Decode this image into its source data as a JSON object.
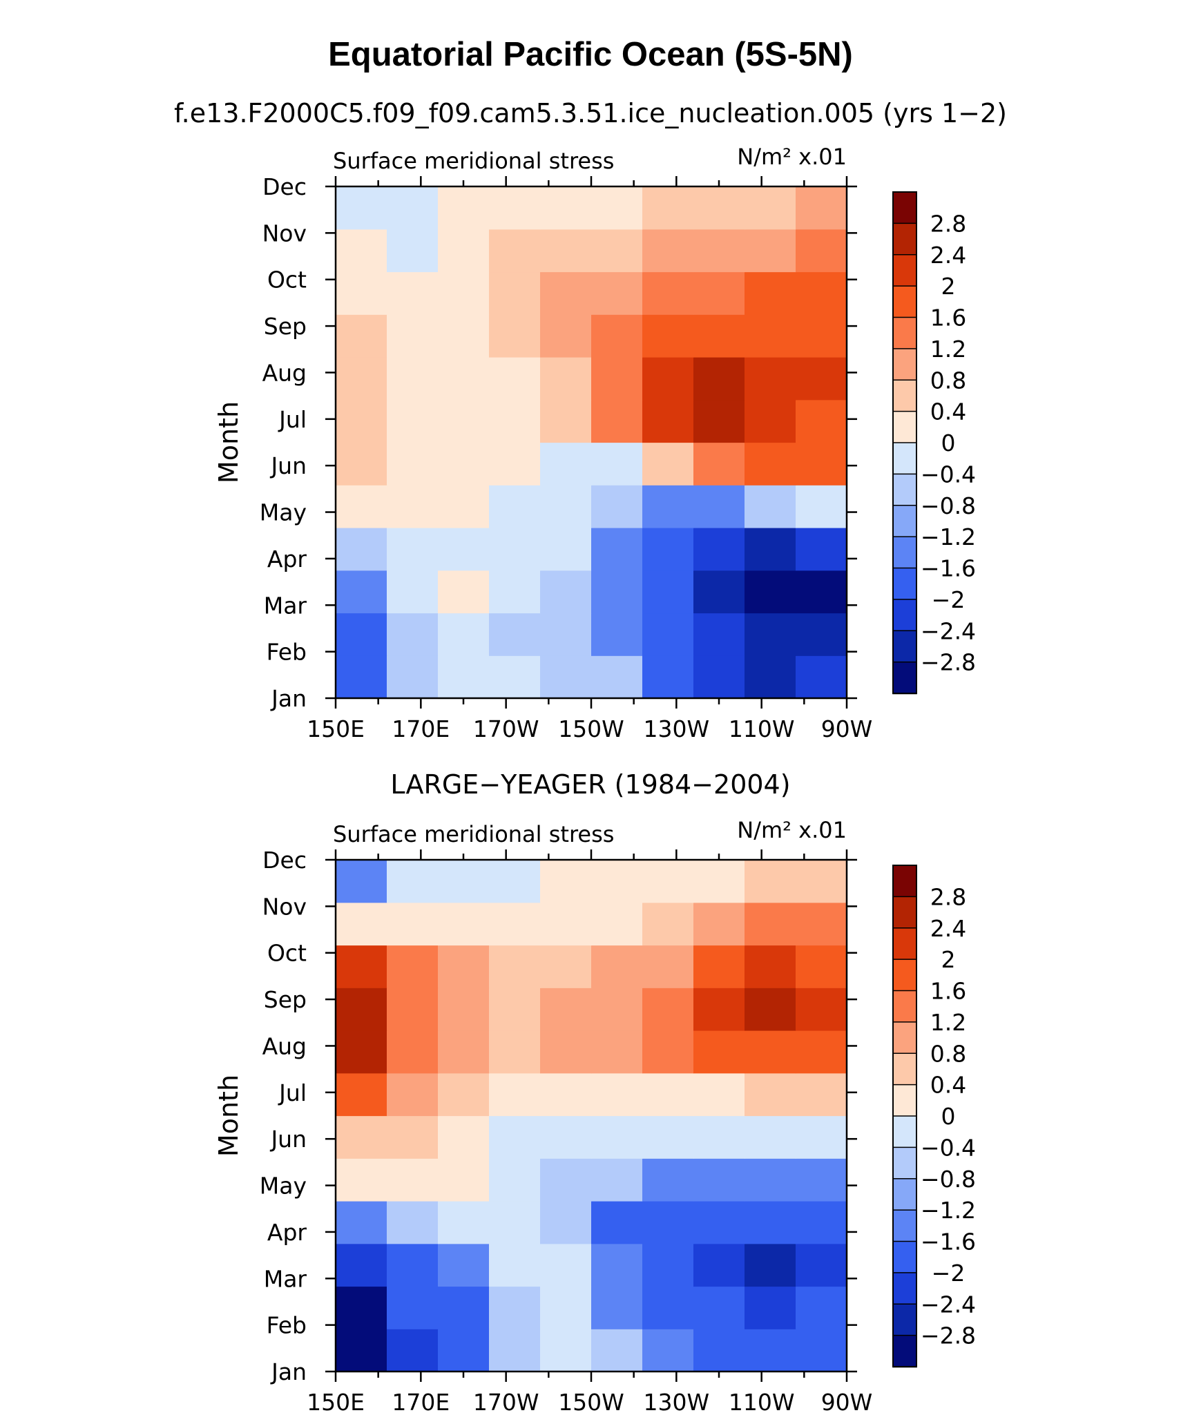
{
  "figure": {
    "title": "Equatorial Pacific Ocean (5S-5N)"
  },
  "chart_data": [
    {
      "type": "heatmap",
      "subtitle": "f.e13.F2000C5.f09_f09.cam5.3.51.ice_nucleation.005 (yrs 1−2)",
      "variable": "Surface meridional stress",
      "units": "N/m² x.01",
      "xlabel": "",
      "ylabel": "Month",
      "x_ticks": [
        "150E",
        "170E",
        "170W",
        "150W",
        "130W",
        "110W",
        "90W"
      ],
      "x_lon": [
        150,
        170,
        190,
        210,
        230,
        250,
        270
      ],
      "y_ticks": [
        "Jan",
        "Feb",
        "Mar",
        "Apr",
        "May",
        "Jun",
        "Jul",
        "Aug",
        "Sep",
        "Oct",
        "Nov",
        "Dec"
      ],
      "values": [
        [
          -2.0,
          -0.8,
          -0.4,
          -0.4,
          -0.8,
          -0.8,
          -1.6,
          -2.4,
          -2.8,
          -2.4
        ],
        [
          -1.6,
          -0.8,
          -0.4,
          -0.8,
          -0.8,
          -1.2,
          -1.6,
          -2.4,
          -2.8,
          -2.8
        ],
        [
          -1.2,
          -0.4,
          0.2,
          -0.4,
          -0.8,
          -1.2,
          -2.0,
          -2.8,
          -3.0,
          -3.0
        ],
        [
          -0.8,
          -0.4,
          -0.4,
          -0.4,
          -0.4,
          -1.2,
          -2.0,
          -2.4,
          -2.8,
          -2.4
        ],
        [
          0.2,
          0.2,
          0.2,
          -0.4,
          -0.4,
          -0.8,
          -1.2,
          -1.2,
          -0.8,
          -0.4
        ],
        [
          0.6,
          0.2,
          0.2,
          0.2,
          -0.4,
          -0.4,
          0.4,
          1.2,
          1.6,
          1.6
        ],
        [
          0.6,
          0.2,
          0.2,
          0.2,
          0.6,
          1.2,
          2.0,
          2.4,
          2.0,
          1.6
        ],
        [
          0.6,
          0.2,
          0.2,
          0.2,
          0.6,
          1.2,
          2.0,
          2.4,
          2.0,
          2.0
        ],
        [
          0.6,
          0.2,
          0.2,
          0.4,
          0.8,
          1.2,
          1.6,
          1.6,
          1.6,
          1.6
        ],
        [
          0.2,
          0.2,
          0.2,
          0.6,
          0.8,
          1.0,
          1.2,
          1.2,
          1.6,
          1.6
        ],
        [
          0.2,
          -0.4,
          0.2,
          0.6,
          0.6,
          0.6,
          0.8,
          0.8,
          0.8,
          1.2
        ],
        [
          -0.4,
          -0.4,
          0.2,
          0.2,
          0.2,
          0.2,
          0.4,
          0.6,
          0.6,
          0.8
        ]
      ],
      "levels": [
        "2.8",
        "2.4",
        "2",
        "1.6",
        "1.2",
        "0.8",
        "0.4",
        "0",
        "−0.4",
        "−0.8",
        "−1.2",
        "−1.6",
        "−2",
        "−2.4",
        "−2.8"
      ],
      "colors": [
        "#7a0403",
        "#b32403",
        "#d9380a",
        "#f55a1e",
        "#fa7a4a",
        "#fba37e",
        "#fdc9aa",
        "#fee8d6",
        "#d4e6fb",
        "#b3cbfa",
        "#86a8f8",
        "#5c84f5",
        "#3560f0",
        "#1c3fd8",
        "#0c28a8",
        "#030c7a"
      ]
    },
    {
      "type": "heatmap",
      "subtitle": "LARGE−YEAGER (1984−2004)",
      "variable": "Surface meridional stress",
      "units": "N/m² x.01",
      "xlabel": "",
      "ylabel": "Month",
      "x_ticks": [
        "150E",
        "170E",
        "170W",
        "150W",
        "130W",
        "110W",
        "90W"
      ],
      "x_lon": [
        150,
        170,
        190,
        210,
        230,
        250,
        270
      ],
      "y_ticks": [
        "Jan",
        "Feb",
        "Mar",
        "Apr",
        "May",
        "Jun",
        "Jul",
        "Aug",
        "Sep",
        "Oct",
        "Nov",
        "Dec"
      ],
      "values": [
        [
          -3.0,
          -2.4,
          -1.6,
          -0.8,
          -0.4,
          -0.8,
          -1.2,
          -1.6,
          -2.0,
          -2.0
        ],
        [
          -3.0,
          -2.0,
          -1.6,
          -0.8,
          -0.4,
          -1.2,
          -1.6,
          -2.0,
          -2.4,
          -2.0
        ],
        [
          -2.4,
          -2.0,
          -1.2,
          -0.4,
          -0.4,
          -1.2,
          -1.6,
          -2.4,
          -2.8,
          -2.4
        ],
        [
          -1.2,
          -0.8,
          -0.4,
          -0.4,
          -0.8,
          -1.6,
          -1.6,
          -2.0,
          -2.0,
          -2.0
        ],
        [
          0.2,
          0.2,
          0.2,
          -0.4,
          -0.8,
          -0.8,
          -1.2,
          -1.2,
          -1.2,
          -1.2
        ],
        [
          0.6,
          0.6,
          0.2,
          -0.4,
          -0.4,
          -0.4,
          -0.4,
          -0.4,
          -0.4,
          -0.4
        ],
        [
          1.6,
          0.8,
          0.6,
          0.2,
          0.2,
          0.2,
          0.2,
          0.2,
          0.4,
          0.4
        ],
        [
          2.8,
          1.2,
          0.8,
          0.6,
          0.8,
          0.8,
          1.2,
          1.6,
          1.6,
          1.6
        ],
        [
          2.4,
          1.2,
          0.8,
          0.6,
          0.8,
          0.8,
          1.2,
          2.0,
          2.4,
          2.0
        ],
        [
          2.0,
          1.2,
          0.8,
          0.6,
          0.6,
          0.8,
          0.8,
          1.6,
          2.0,
          1.6
        ],
        [
          0.2,
          0.2,
          0.2,
          0.2,
          0.2,
          0.2,
          0.6,
          0.8,
          1.2,
          1.2
        ],
        [
          -1.2,
          -0.4,
          -0.4,
          -0.4,
          0.2,
          0.2,
          0.2,
          0.2,
          0.6,
          0.6
        ]
      ],
      "levels": [
        "2.8",
        "2.4",
        "2",
        "1.6",
        "1.2",
        "0.8",
        "0.4",
        "0",
        "−0.4",
        "−0.8",
        "−1.2",
        "−1.6",
        "−2",
        "−2.4",
        "−2.8"
      ],
      "colors": [
        "#7a0403",
        "#b32403",
        "#d9380a",
        "#f55a1e",
        "#fa7a4a",
        "#fba37e",
        "#fdc9aa",
        "#fee8d6",
        "#d4e6fb",
        "#b3cbfa",
        "#86a8f8",
        "#5c84f5",
        "#3560f0",
        "#1c3fd8",
        "#0c28a8",
        "#030c7a"
      ]
    }
  ]
}
